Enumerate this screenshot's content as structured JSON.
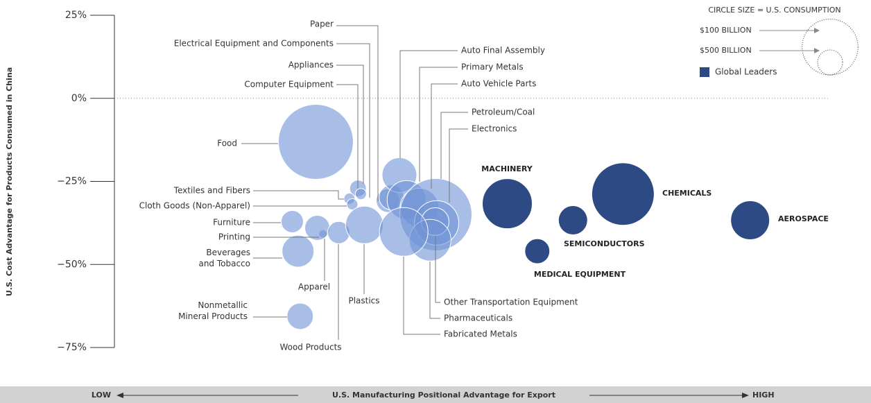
{
  "chart_data": {
    "type": "bubble",
    "ylabel": "U.S. Cost Advantage for Products Consumed in China",
    "xlabel": "U.S. Manufacturing Positional Advantage for Export",
    "x_low_label": "LOW",
    "x_high_label": "HIGH",
    "xlim": [
      0,
      100
    ],
    "ylim": [
      -75,
      25
    ],
    "yticks": [
      {
        "value": 25,
        "label": "25%"
      },
      {
        "value": 0,
        "label": "0%"
      },
      {
        "value": -25,
        "label": "−25%"
      },
      {
        "value": -50,
        "label": "−50%"
      },
      {
        "value": -75,
        "label": "−75%"
      }
    ],
    "size_legend": {
      "title": "CIRCLE SIZE = U.S. CONSUMPTION",
      "entries": [
        {
          "label": "$100 BILLION",
          "value": 100
        },
        {
          "label": "$500 BILLION",
          "value": 500
        }
      ]
    },
    "series": [
      {
        "color": "#6f93d6",
        "labels": [
          "Food",
          "Paper",
          "Electrical Equipment and Components",
          "Appliances",
          "Computer Equipment",
          "Auto Final Assembly",
          "Primary Metals",
          "Auto Vehicle Parts",
          "Petroleum/Coal",
          "Electronics",
          "Textiles and Fibers",
          "Cloth Goods (Non-Apparel)",
          "Furniture",
          "Printing",
          "Beverages\nand Tobacco",
          "Apparel",
          "Wood Products",
          "Plastics",
          "Nonmetallic\nMineral Products",
          "Other Transportation Equipment",
          "Pharmaceuticals",
          "Fabricated Metals"
        ],
        "x": [
          28.2,
          38.3,
          38.8,
          34.1,
          34.5,
          39.9,
          40.9,
          42.7,
          45.0,
          45.1,
          32.9,
          33.3,
          24.9,
          29.2,
          25.7,
          28.4,
          31.4,
          35.0,
          26.0,
          44.9,
          44.2,
          40.5
        ],
        "values": [
          -13.1,
          -30.8,
          -29.8,
          -27.1,
          -28.8,
          -23.1,
          -30.6,
          -32.9,
          -35.0,
          -37.5,
          -30.2,
          -31.9,
          -37.1,
          -40.8,
          -46.0,
          -39.0,
          -40.4,
          -38.1,
          -65.6,
          -37.1,
          -42.7,
          -40.2
        ],
        "sizes": [
          900,
          89,
          100,
          44,
          20,
          193,
          242,
          242,
          835,
          316,
          20,
          20,
          79,
          11,
          163,
          100,
          79,
          225,
          111,
          123,
          278,
          378
        ]
      },
      {
        "name": "Global Leaders",
        "color": "#2e4a85",
        "labels": [
          "MACHINERY",
          "CHEMICALS",
          "AEROSPACE",
          "SEMICONDUCTORS",
          "MEDICAL EQUIPMENT"
        ],
        "x": [
          55.0,
          71.2,
          89.0,
          64.2,
          59.2
        ],
        "values": [
          -31.7,
          -28.8,
          -36.7,
          -36.7,
          -46.0
        ],
        "sizes": [
          400,
          625,
          242,
          136,
          100
        ]
      }
    ]
  }
}
